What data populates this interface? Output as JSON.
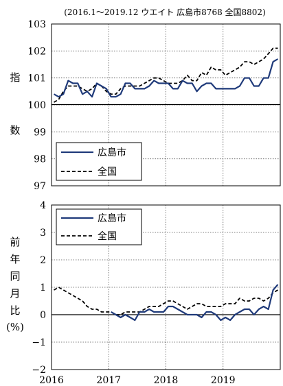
{
  "chart_data": [
    {
      "type": "line",
      "note": "(2016.1～2019.12  ウエイト 広島市8768  全国8802)",
      "ylabel": [
        "指",
        "数"
      ],
      "ylim": [
        97,
        103
      ],
      "yticks": [
        "97",
        "98",
        "99",
        "100",
        "101",
        "102",
        "103"
      ],
      "xlim": [
        "2016-01",
        "2019-12"
      ],
      "grid": true,
      "legend": "bottom-left",
      "x": [
        "2016-01",
        "2016-02",
        "2016-03",
        "2016-04",
        "2016-05",
        "2016-06",
        "2016-07",
        "2016-08",
        "2016-09",
        "2016-10",
        "2016-11",
        "2016-12",
        "2017-01",
        "2017-02",
        "2017-03",
        "2017-04",
        "2017-05",
        "2017-06",
        "2017-07",
        "2017-08",
        "2017-09",
        "2017-10",
        "2017-11",
        "2017-12",
        "2018-01",
        "2018-02",
        "2018-03",
        "2018-04",
        "2018-05",
        "2018-06",
        "2018-07",
        "2018-08",
        "2018-09",
        "2018-10",
        "2018-11",
        "2018-12",
        "2019-01",
        "2019-02",
        "2019-03",
        "2019-04",
        "2019-05",
        "2019-06",
        "2019-07",
        "2019-08",
        "2019-09",
        "2019-10",
        "2019-11",
        "2019-12"
      ],
      "series": [
        {
          "name": "広島市",
          "style": "solid",
          "color": "#1f3a7a",
          "values": [
            100.4,
            100.3,
            100.4,
            100.9,
            100.8,
            100.8,
            100.4,
            100.5,
            100.3,
            100.8,
            100.7,
            100.6,
            100.3,
            100.3,
            100.4,
            100.8,
            100.8,
            100.6,
            100.6,
            100.6,
            100.7,
            100.9,
            100.8,
            100.8,
            100.8,
            100.6,
            100.6,
            100.9,
            100.8,
            100.8,
            100.5,
            100.7,
            100.8,
            100.8,
            100.6,
            100.6,
            100.6,
            100.6,
            100.6,
            100.7,
            101.0,
            101.0,
            100.7,
            100.7,
            101.0,
            101.0,
            101.6,
            101.7
          ]
        },
        {
          "name": "全国",
          "style": "dashed",
          "color": "#000000",
          "values": [
            100.1,
            100.2,
            100.5,
            100.7,
            100.7,
            100.7,
            100.6,
            100.5,
            100.6,
            100.8,
            100.7,
            100.5,
            100.4,
            100.4,
            100.6,
            100.7,
            100.7,
            100.7,
            100.7,
            100.8,
            100.9,
            101.0,
            101.0,
            100.9,
            100.8,
            100.8,
            100.8,
            100.9,
            101.1,
            100.9,
            100.9,
            101.2,
            101.1,
            101.4,
            101.3,
            101.3,
            101.1,
            101.2,
            101.3,
            101.4,
            101.6,
            101.6,
            101.5,
            101.6,
            101.7,
            101.9,
            102.1,
            102.1
          ]
        }
      ]
    },
    {
      "type": "line",
      "ylabel": [
        "前",
        "年",
        "同",
        "月",
        "比",
        "(%)"
      ],
      "ylim": [
        -2,
        4
      ],
      "yticks": [
        "−2",
        "−1",
        "0",
        "1",
        "2",
        "3",
        "4"
      ],
      "xlim": [
        "2016-01",
        "2019-12"
      ],
      "xticks": [
        "2016",
        "2017",
        "2018",
        "2019"
      ],
      "grid": true,
      "legend": "top-left",
      "x": [
        "2016-01",
        "2016-02",
        "2016-03",
        "2016-04",
        "2016-05",
        "2016-06",
        "2016-07",
        "2016-08",
        "2016-09",
        "2016-10",
        "2016-11",
        "2016-12",
        "2017-01",
        "2017-02",
        "2017-03",
        "2017-04",
        "2017-05",
        "2017-06",
        "2017-07",
        "2017-08",
        "2017-09",
        "2017-10",
        "2017-11",
        "2017-12",
        "2018-01",
        "2018-02",
        "2018-03",
        "2018-04",
        "2018-05",
        "2018-06",
        "2018-07",
        "2018-08",
        "2018-09",
        "2018-10",
        "2018-11",
        "2018-12",
        "2019-01",
        "2019-02",
        "2019-03",
        "2019-04",
        "2019-05",
        "2019-06",
        "2019-07",
        "2019-08",
        "2019-09",
        "2019-10",
        "2019-11",
        "2019-12"
      ],
      "series": [
        {
          "name": "広島市",
          "style": "solid",
          "color": "#1f3a7a",
          "values": [
            null,
            null,
            null,
            null,
            null,
            null,
            null,
            null,
            null,
            null,
            null,
            null,
            0.1,
            0.0,
            -0.1,
            0.0,
            -0.1,
            -0.2,
            0.1,
            0.1,
            0.2,
            0.1,
            0.1,
            0.1,
            0.3,
            0.3,
            0.2,
            0.1,
            0.0,
            0.0,
            0.0,
            -0.1,
            0.1,
            0.1,
            0.0,
            -0.2,
            -0.1,
            -0.2,
            0.0,
            0.1,
            0.2,
            0.2,
            0.0,
            0.2,
            0.3,
            0.2,
            0.9,
            1.1
          ]
        },
        {
          "name": "全国",
          "style": "dashed",
          "color": "#000000",
          "values": [
            0.9,
            1.0,
            0.9,
            0.8,
            0.7,
            0.6,
            0.5,
            0.3,
            0.2,
            0.2,
            0.1,
            0.1,
            0.1,
            0.0,
            0.0,
            0.1,
            0.1,
            0.1,
            0.1,
            0.2,
            0.3,
            0.3,
            0.3,
            0.4,
            0.5,
            0.5,
            0.4,
            0.3,
            0.2,
            0.3,
            0.4,
            0.4,
            0.3,
            0.3,
            0.3,
            0.3,
            0.4,
            0.4,
            0.4,
            0.6,
            0.5,
            0.5,
            0.6,
            0.6,
            0.5,
            0.6,
            0.8,
            0.9
          ]
        }
      ]
    }
  ]
}
